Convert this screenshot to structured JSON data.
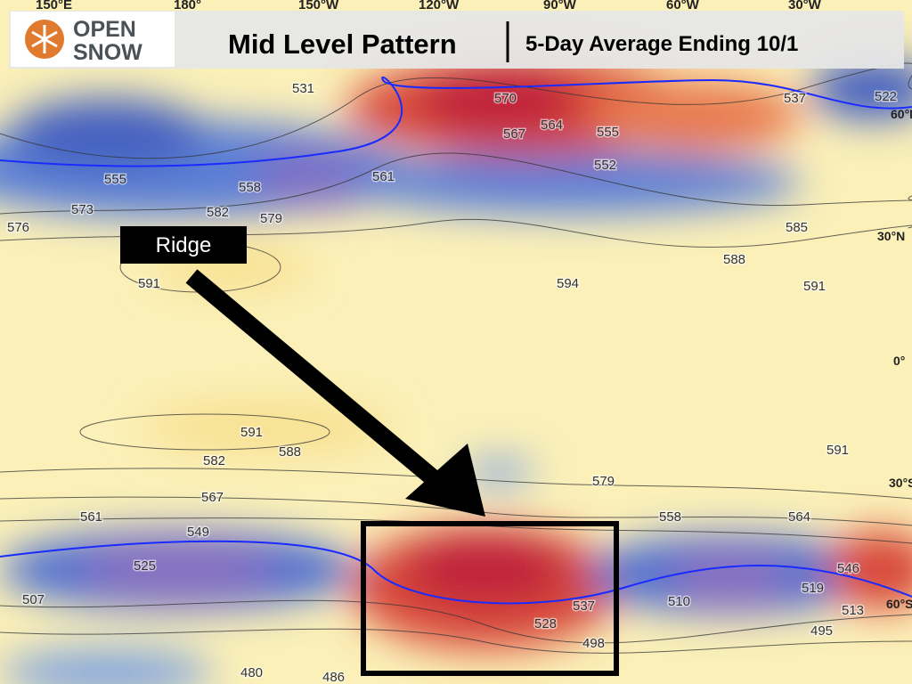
{
  "header": {
    "logo": [
      "OPEN",
      "SNOW"
    ],
    "title": "Mid Level Pattern",
    "subtitle": "5-Day Average Ending 10/1"
  },
  "annotation": {
    "label": "Ridge"
  },
  "longitudes": [
    "150°E",
    "180°",
    "150°W",
    "120°W",
    "90°W",
    "60°W",
    "30°W"
  ],
  "latitudes": [
    "60°N",
    "30°N",
    "0°",
    "30°S",
    "60°S"
  ],
  "contour_labels": [
    "591",
    "582",
    "579",
    "573",
    "576",
    "555",
    "558",
    "561",
    "531",
    "570",
    "567",
    "564",
    "555",
    "552",
    "585",
    "588",
    "594",
    "591",
    "591",
    "588",
    "582",
    "567",
    "561",
    "549",
    "525",
    "507",
    "579",
    "558",
    "564",
    "546",
    "519",
    "513",
    "510",
    "495",
    "537",
    "528",
    "498",
    "480",
    "486",
    "591",
    "522",
    "537"
  ]
}
